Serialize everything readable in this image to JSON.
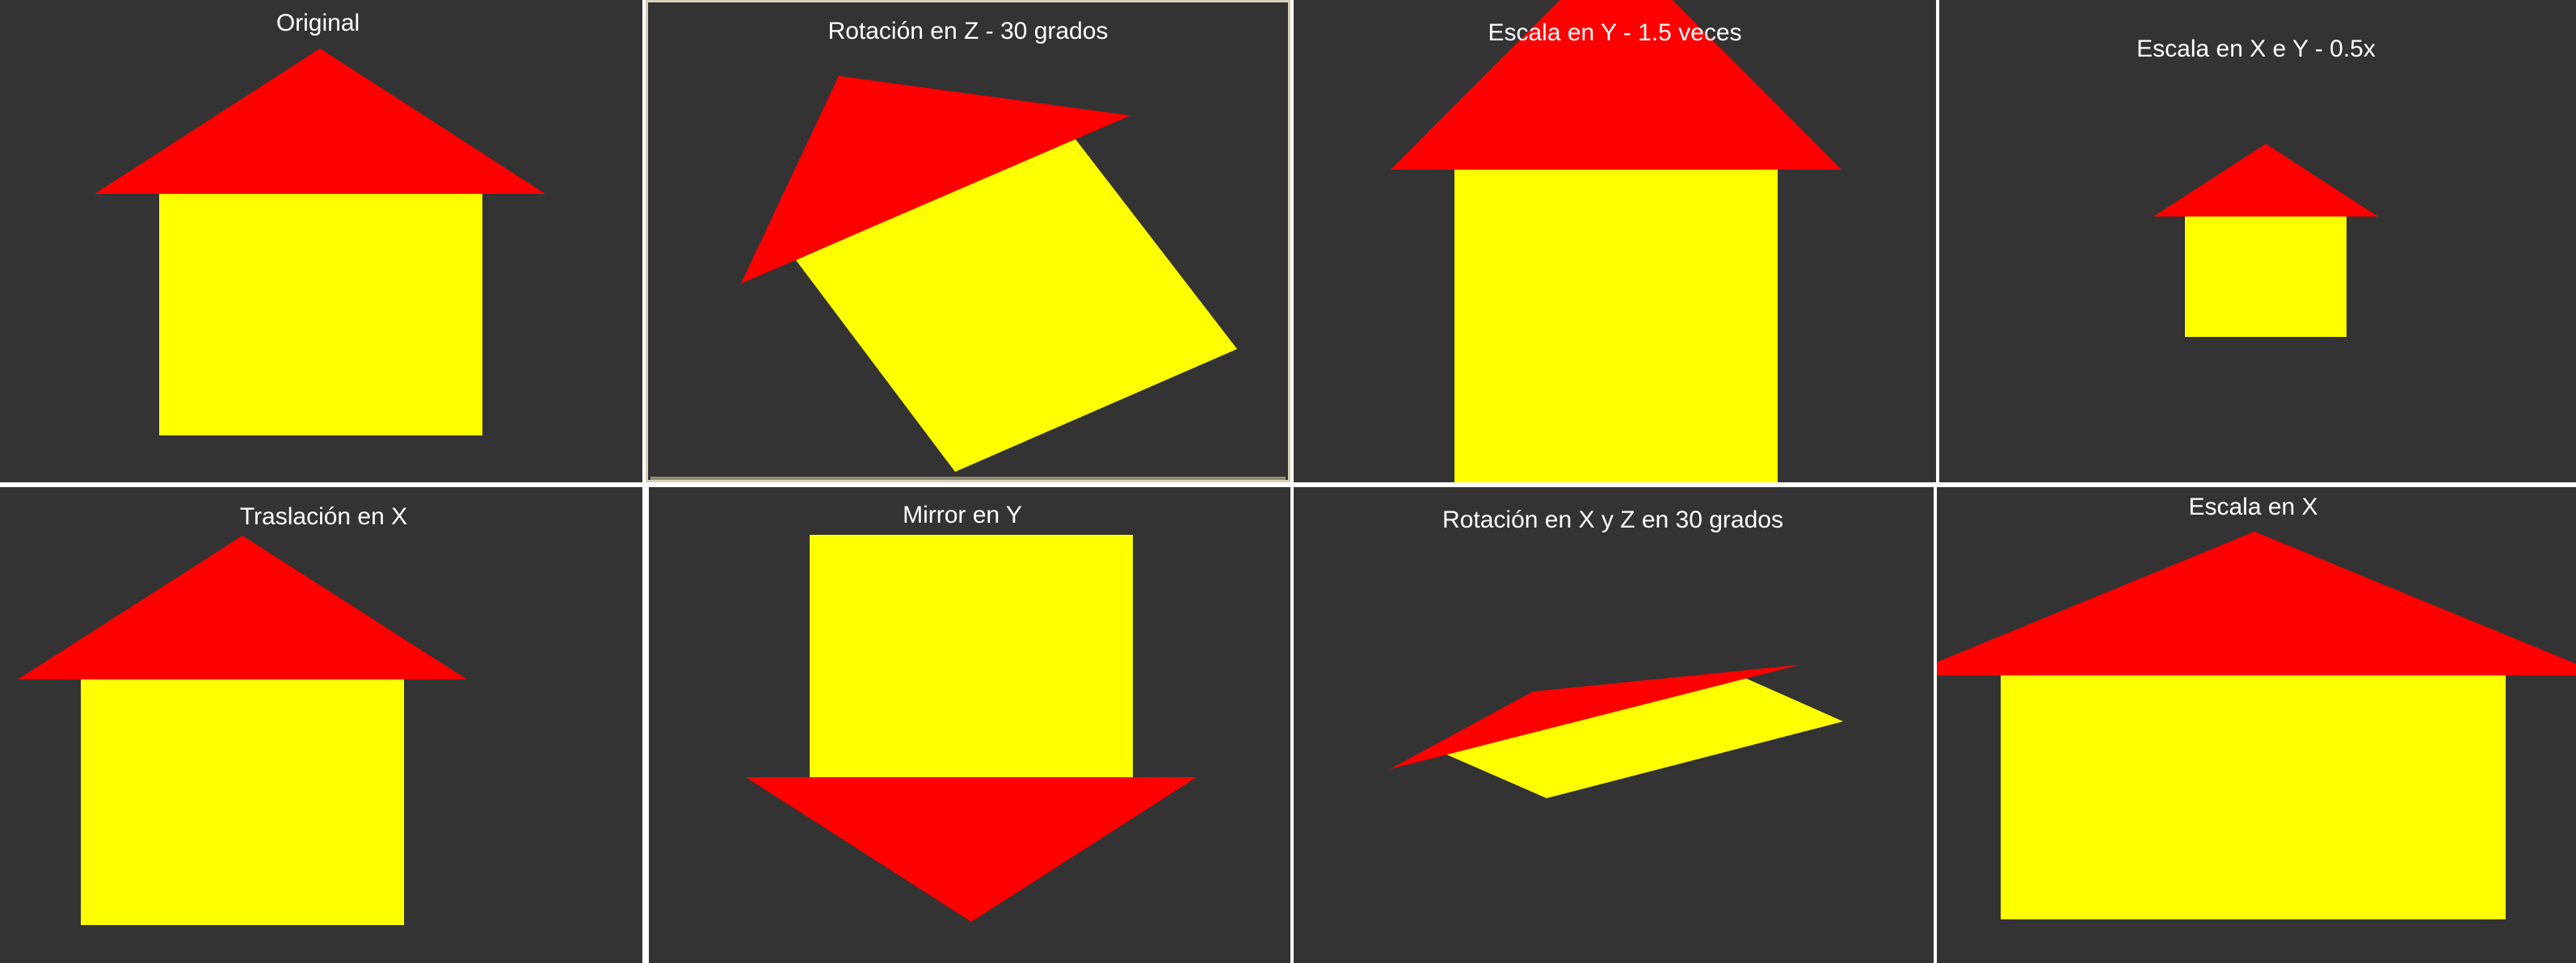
{
  "colors": {
    "background": "#333333",
    "roof": "#ff0000",
    "walls": "#ffff00",
    "text": "#ffffff",
    "separator": "#ffffff"
  },
  "panels": [
    {
      "id": "original",
      "caption": "Original"
    },
    {
      "id": "rotation-z",
      "caption": "Rotación en Z - 30 grados"
    },
    {
      "id": "scale-y",
      "caption": "Escala en Y - 1.5 veces"
    },
    {
      "id": "scale-xy",
      "caption": "Escala en X e Y - 0.5x"
    },
    {
      "id": "translation-x",
      "caption": "Traslación en X"
    },
    {
      "id": "mirror-y",
      "caption": "Mirror en Y"
    },
    {
      "id": "rotation-xz",
      "caption": "Rotación en X y Z en 30 grados"
    },
    {
      "id": "scale-x",
      "caption": "Escala en X"
    }
  ]
}
